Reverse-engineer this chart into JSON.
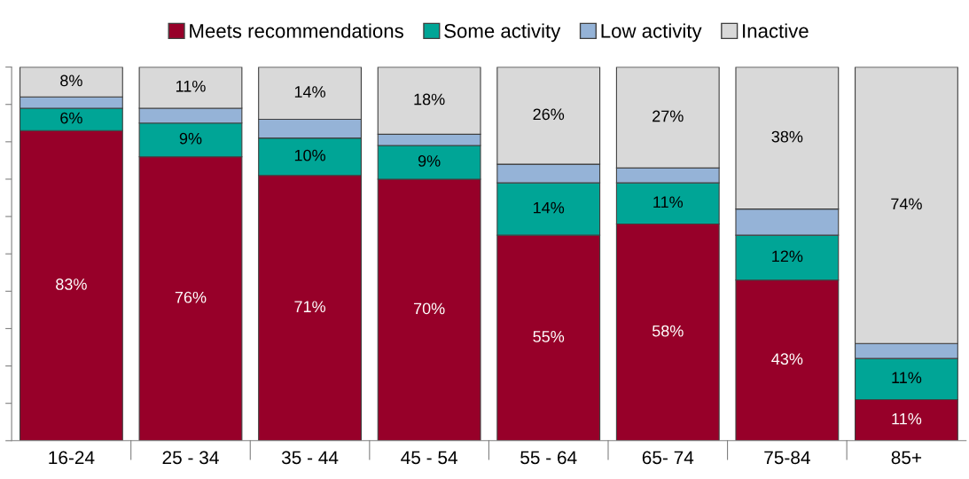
{
  "chart_data": {
    "type": "bar",
    "stacked": true,
    "categories": [
      "16-24",
      "25 - 34",
      "35 - 44",
      "45 - 54",
      "55 - 64",
      "65- 74",
      "75-84",
      "85+"
    ],
    "series": [
      {
        "name": "Meets recommendations",
        "color": "#970029",
        "values": [
          83,
          76,
          71,
          70,
          55,
          58,
          43,
          11
        ],
        "value_labels": [
          "83%",
          "76%",
          "71%",
          "70%",
          "55%",
          "58%",
          "43%",
          "11%"
        ]
      },
      {
        "name": "Some activity",
        "color": "#00a596",
        "values": [
          6,
          9,
          10,
          9,
          14,
          11,
          12,
          11
        ],
        "value_labels": [
          "6%",
          "9%",
          "10%",
          "9%",
          "14%",
          "11%",
          "12%",
          "11%"
        ]
      },
      {
        "name": "Low activity",
        "color": "#95b3d7",
        "values": [
          3,
          4,
          5,
          3,
          5,
          4,
          7,
          4
        ]
      },
      {
        "name": "Inactive",
        "color": "#d9d9d9",
        "values": [
          8,
          11,
          14,
          18,
          26,
          27,
          38,
          74
        ],
        "value_labels": [
          "8%",
          "11%",
          "14%",
          "18%",
          "26%",
          "27%",
          "38%",
          "74%"
        ]
      }
    ],
    "ylim": [
      0,
      100
    ],
    "yticks": [
      {
        "value": 0,
        "label": null
      },
      {
        "value": 10,
        "label": null
      },
      {
        "value": 20,
        "label": null
      },
      {
        "value": 30,
        "label": null
      },
      {
        "value": 40,
        "label": null
      },
      {
        "value": 50,
        "label": null
      },
      {
        "value": 60,
        "label": null
      },
      {
        "value": 70,
        "label": null
      },
      {
        "value": 80,
        "label": null
      },
      {
        "value": 90,
        "label": null
      },
      {
        "value": 100,
        "label": null
      }
    ],
    "tick_labels": "x",
    "grid": false,
    "legend": "top"
  }
}
